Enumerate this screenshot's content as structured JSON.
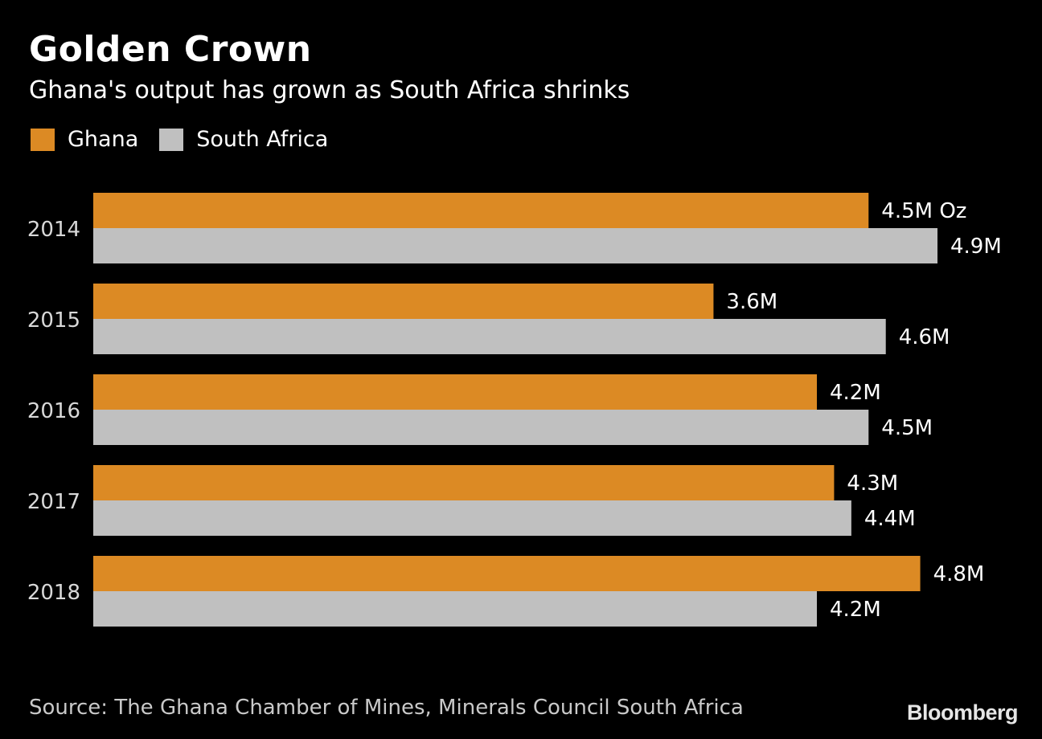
{
  "chart_data": {
    "type": "bar",
    "orientation": "horizontal",
    "title": "Golden Crown",
    "subtitle": "Ghana's output has grown as South Africa shrinks",
    "categories": [
      "2014",
      "2015",
      "2016",
      "2017",
      "2018"
    ],
    "series": [
      {
        "name": "Ghana",
        "color": "#dc8a24",
        "values": [
          4.5,
          3.6,
          4.2,
          4.3,
          4.8
        ],
        "labels": [
          "4.5M Oz",
          "3.6M",
          "4.2M",
          "4.3M",
          "4.8M"
        ]
      },
      {
        "name": "South Africa",
        "color": "#c0c0c0",
        "values": [
          4.9,
          4.6,
          4.5,
          4.4,
          4.2
        ],
        "labels": [
          "4.9M",
          "4.6M",
          "4.5M",
          "4.4M",
          "4.2M"
        ]
      }
    ],
    "unit": "million ounces",
    "xlim": [
      0,
      4.9
    ],
    "grid": false,
    "legend_position": "top-left",
    "source": "Source: The Ghana Chamber of Mines, Minerals Council South Africa"
  },
  "branding": {
    "logo": "Bloomberg"
  },
  "background": "#000000"
}
